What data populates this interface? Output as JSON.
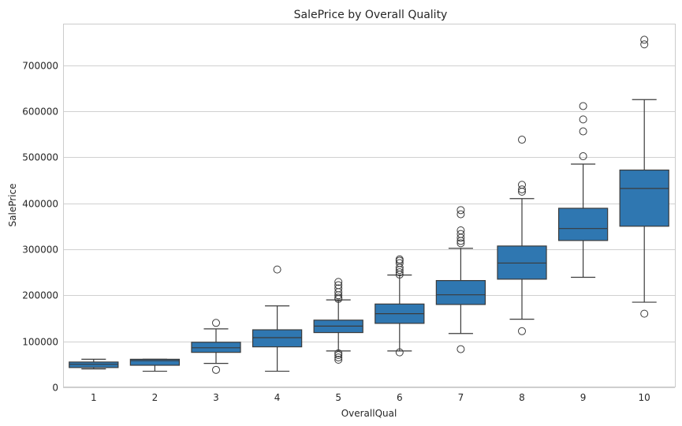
{
  "chart_data": {
    "type": "box",
    "title": "SalePrice by Overall Quality",
    "xlabel": "OverallQual",
    "ylabel": "SalePrice",
    "ylim": [
      0,
      790000
    ],
    "yticks": [
      0,
      100000,
      200000,
      300000,
      400000,
      500000,
      600000,
      700000
    ],
    "grid": "horizontal",
    "box_color": "#2f77b1",
    "line_color": "#3b3b3b",
    "categories": [
      "1",
      "2",
      "3",
      "4",
      "5",
      "6",
      "7",
      "8",
      "9",
      "10"
    ],
    "boxes": [
      {
        "category": "1",
        "whisker_low": 40000,
        "q1": 43000,
        "median": 50000,
        "q3": 55000,
        "whisker_high": 61000,
        "outliers": []
      },
      {
        "category": "2",
        "whisker_low": 35000,
        "q1": 48000,
        "median": 58000,
        "q3": 61000,
        "whisker_high": 61000,
        "outliers": []
      },
      {
        "category": "3",
        "whisker_low": 52000,
        "q1": 76000,
        "median": 86000,
        "q3": 98000,
        "whisker_high": 127000,
        "outliers": [
          140000,
          38000
        ]
      },
      {
        "category": "4",
        "whisker_low": 35000,
        "q1": 88000,
        "median": 108000,
        "q3": 125000,
        "whisker_high": 177000,
        "outliers": [
          256000
        ]
      },
      {
        "category": "5",
        "whisker_low": 79000,
        "q1": 119000,
        "median": 133000,
        "q3": 146000,
        "whisker_high": 190000,
        "outliers": [
          229000,
          222000,
          215000,
          207000,
          200000,
          195000,
          192000,
          74000,
          70000,
          65000,
          60000
        ]
      },
      {
        "category": "6",
        "whisker_low": 79000,
        "q1": 139000,
        "median": 160000,
        "q3": 181000,
        "whisker_high": 244000,
        "outliers": [
          278000,
          275000,
          270000,
          260000,
          255000,
          250000,
          245000,
          76000
        ]
      },
      {
        "category": "7",
        "whisker_low": 117000,
        "q1": 180000,
        "median": 201000,
        "q3": 232000,
        "whisker_high": 302000,
        "outliers": [
          385000,
          376000,
          341000,
          333000,
          325000,
          318000,
          313000,
          83000
        ]
      },
      {
        "category": "8",
        "whisker_low": 148000,
        "q1": 235000,
        "median": 270000,
        "q3": 307000,
        "whisker_high": 410000,
        "outliers": [
          538000,
          440000,
          430000,
          425000,
          122000
        ]
      },
      {
        "category": "9",
        "whisker_low": 239000,
        "q1": 319000,
        "median": 345000,
        "q3": 389000,
        "whisker_high": 485000,
        "outliers": [
          611000,
          582000,
          556000,
          502000
        ]
      },
      {
        "category": "10",
        "whisker_low": 185000,
        "q1": 350000,
        "median": 432000,
        "q3": 472000,
        "whisker_high": 625000,
        "outliers": [
          755000,
          745000,
          160000
        ]
      }
    ]
  }
}
